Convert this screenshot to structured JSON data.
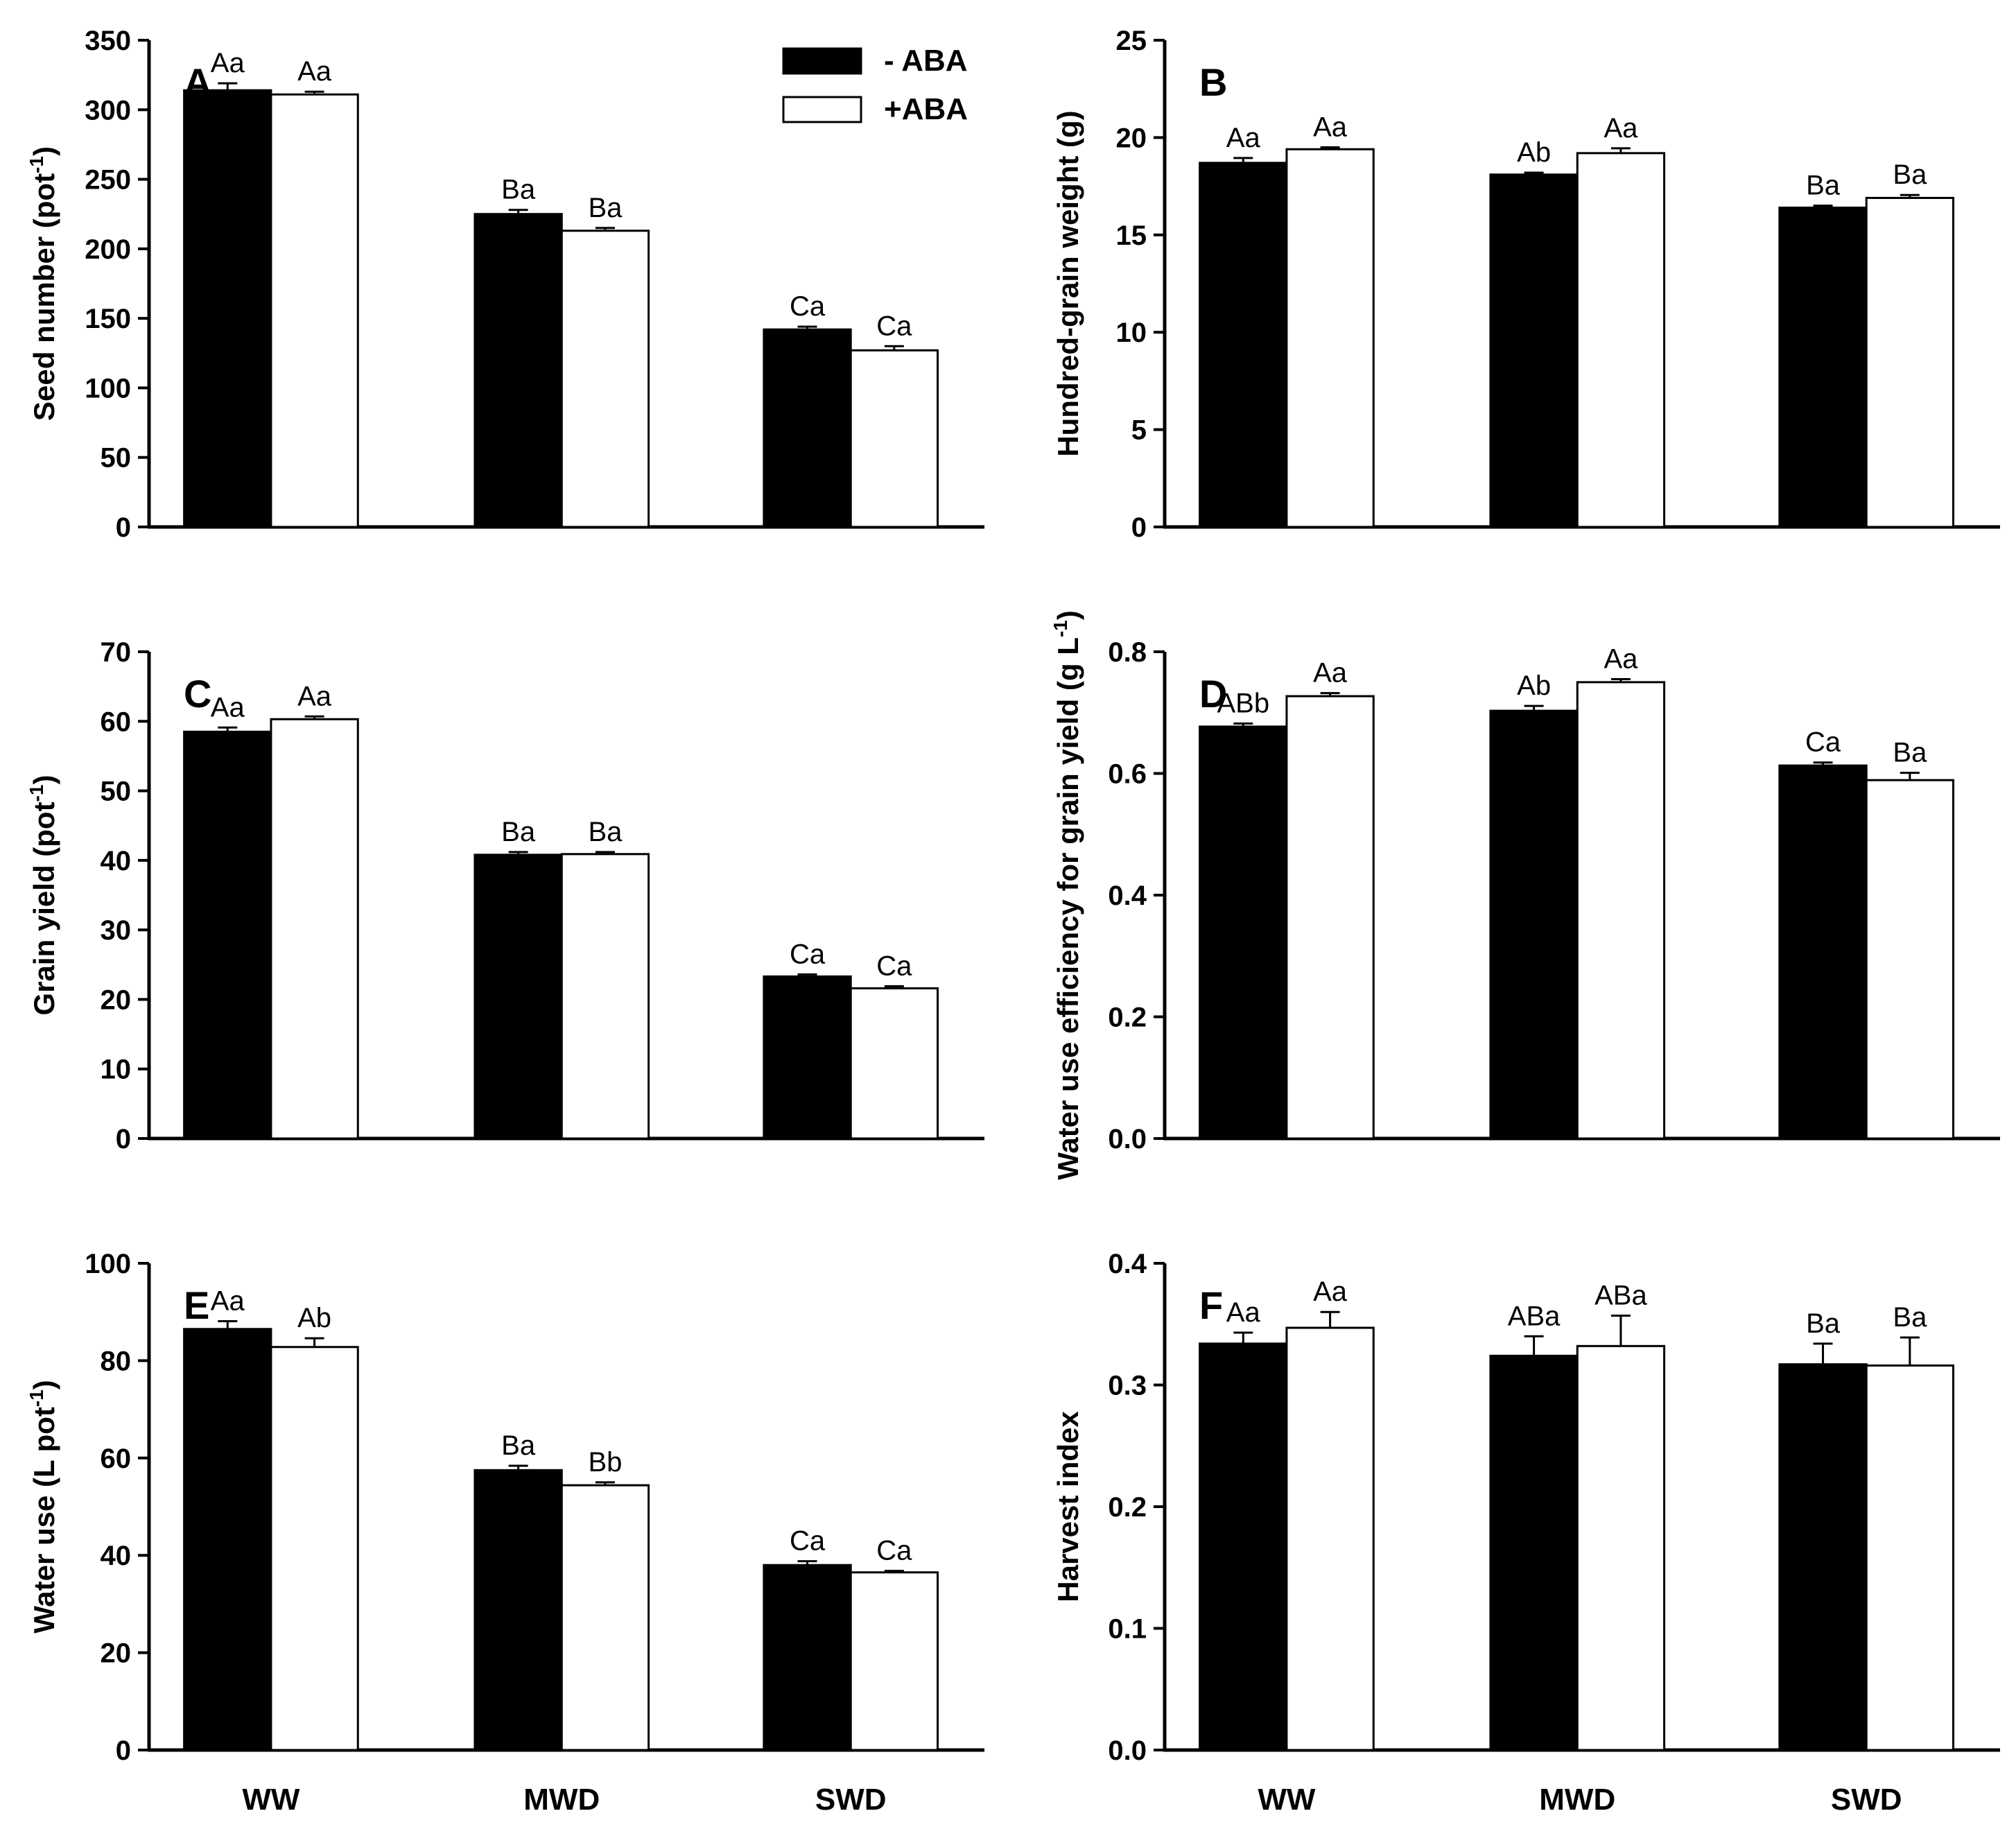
{
  "figure": {
    "legend": [
      {
        "name": "- ABA",
        "color": "#000000"
      },
      {
        "name": "+ABA",
        "color": "#ffffff"
      }
    ]
  },
  "chart_data": [
    {
      "panel": "A",
      "type": "bar",
      "title": "",
      "xlabel": "",
      "ylabel": "Seed number (pot-1)",
      "ylabel_main": "Seed number (pot",
      "ylabel_sup": "-1",
      "ylabel_tail": ")",
      "categories": [
        "WW",
        "MWD",
        "SWD"
      ],
      "show_xticklabels": false,
      "ylim": [
        0,
        350
      ],
      "yticks": [
        0,
        50,
        100,
        150,
        200,
        250,
        300,
        350
      ],
      "tick_decimals": 0,
      "series": [
        {
          "name": "- ABA",
          "values": [
            314,
            225,
            142
          ],
          "errors": [
            5,
            3,
            2
          ],
          "labels": [
            "Aa",
            "Ba",
            "Ca"
          ]
        },
        {
          "name": "+ABA",
          "values": [
            311,
            213,
            127
          ],
          "errors": [
            2,
            2,
            3
          ],
          "labels": [
            "Aa",
            "Ba",
            "Ca"
          ]
        }
      ]
    },
    {
      "panel": "B",
      "type": "bar",
      "title": "",
      "xlabel": "",
      "ylabel": "Hundred-grain weight (g)",
      "ylabel_main": "Hundred-grain weight (g)",
      "ylabel_sup": "",
      "ylabel_tail": "",
      "categories": [
        "WW",
        "MWD",
        "SWD"
      ],
      "show_xticklabels": false,
      "ylim": [
        0,
        25
      ],
      "yticks": [
        0,
        5,
        10,
        15,
        20,
        25
      ],
      "tick_decimals": 0,
      "series": [
        {
          "name": "- ABA",
          "values": [
            18.7,
            18.1,
            16.4
          ],
          "errors": [
            0.25,
            0.1,
            0.1
          ],
          "labels": [
            "Aa",
            "Ab",
            "Ba"
          ]
        },
        {
          "name": "+ABA",
          "values": [
            19.4,
            19.2,
            16.9
          ],
          "errors": [
            0.1,
            0.25,
            0.15
          ],
          "labels": [
            "Aa",
            "Aa",
            "Ba"
          ]
        }
      ]
    },
    {
      "panel": "C",
      "type": "bar",
      "title": "",
      "xlabel": "",
      "ylabel": "Grain yield (pot-1)",
      "ylabel_main": "Grain yield (pot",
      "ylabel_sup": "-1",
      "ylabel_tail": ")",
      "categories": [
        "WW",
        "MWD",
        "SWD"
      ],
      "show_xticklabels": false,
      "ylim": [
        0,
        70
      ],
      "yticks": [
        0,
        10,
        20,
        30,
        40,
        50,
        60,
        70
      ],
      "tick_decimals": 0,
      "series": [
        {
          "name": "- ABA",
          "values": [
            58.5,
            40.8,
            23.3
          ],
          "errors": [
            0.6,
            0.4,
            0.3
          ],
          "labels": [
            "Aa",
            "Ba",
            "Ca"
          ]
        },
        {
          "name": "+ABA",
          "values": [
            60.3,
            40.9,
            21.6
          ],
          "errors": [
            0.4,
            0.3,
            0.3
          ],
          "labels": [
            "Aa",
            "Ba",
            "Ca"
          ]
        }
      ]
    },
    {
      "panel": "D",
      "type": "bar",
      "title": "",
      "xlabel": "",
      "ylabel": "Water use efficiency for grain yield (g L-1)",
      "ylabel_main": "Water use efficiency for grain yield (g L",
      "ylabel_sup": "-1",
      "ylabel_tail": ")",
      "categories": [
        "WW",
        "MWD",
        "SWD"
      ],
      "show_xticklabels": false,
      "ylim": [
        0,
        0.8
      ],
      "yticks": [
        0,
        0.2,
        0.4,
        0.6,
        0.8
      ],
      "tick_decimals": 1,
      "series": [
        {
          "name": "- ABA",
          "values": [
            0.677,
            0.703,
            0.613
          ],
          "errors": [
            0.005,
            0.008,
            0.005
          ],
          "labels": [
            "ABb",
            "Ab",
            "Ca"
          ]
        },
        {
          "name": "+ABA",
          "values": [
            0.727,
            0.75,
            0.589
          ],
          "errors": [
            0.005,
            0.005,
            0.012
          ],
          "labels": [
            "Aa",
            "Aa",
            "Ba"
          ]
        }
      ]
    },
    {
      "panel": "E",
      "type": "bar",
      "title": "",
      "xlabel": "",
      "ylabel": "Water use (L pot-1)",
      "ylabel_main": "Water use (L pot",
      "ylabel_sup": "-1",
      "ylabel_tail": ")",
      "categories": [
        "WW",
        "MWD",
        "SWD"
      ],
      "show_xticklabels": true,
      "ylim": [
        0,
        100
      ],
      "yticks": [
        0,
        20,
        40,
        60,
        80,
        100
      ],
      "tick_decimals": 0,
      "series": [
        {
          "name": "- ABA",
          "values": [
            86.5,
            57.5,
            38.0
          ],
          "errors": [
            1.6,
            0.9,
            0.8
          ],
          "labels": [
            "Aa",
            "Ba",
            "Ca"
          ]
        },
        {
          "name": "+ABA",
          "values": [
            82.8,
            54.4,
            36.5
          ],
          "errors": [
            1.8,
            0.6,
            0.3
          ],
          "labels": [
            "Ab",
            "Bb",
            "Ca"
          ]
        }
      ]
    },
    {
      "panel": "F",
      "type": "bar",
      "title": "",
      "xlabel": "",
      "ylabel": "Harvest index",
      "ylabel_main": "Harvest index",
      "ylabel_sup": "",
      "ylabel_tail": "",
      "categories": [
        "WW",
        "MWD",
        "SWD"
      ],
      "show_xticklabels": true,
      "ylim": [
        0,
        0.4
      ],
      "yticks": [
        0,
        0.1,
        0.2,
        0.3,
        0.4
      ],
      "tick_decimals": 1,
      "series": [
        {
          "name": "- ABA",
          "values": [
            0.334,
            0.324,
            0.317
          ],
          "errors": [
            0.009,
            0.016,
            0.017
          ],
          "labels": [
            "Aa",
            "ABa",
            "Ba"
          ]
        },
        {
          "name": "+ABA",
          "values": [
            0.347,
            0.332,
            0.316
          ],
          "errors": [
            0.013,
            0.025,
            0.023
          ],
          "labels": [
            "Aa",
            "ABa",
            "Ba"
          ]
        }
      ]
    }
  ]
}
